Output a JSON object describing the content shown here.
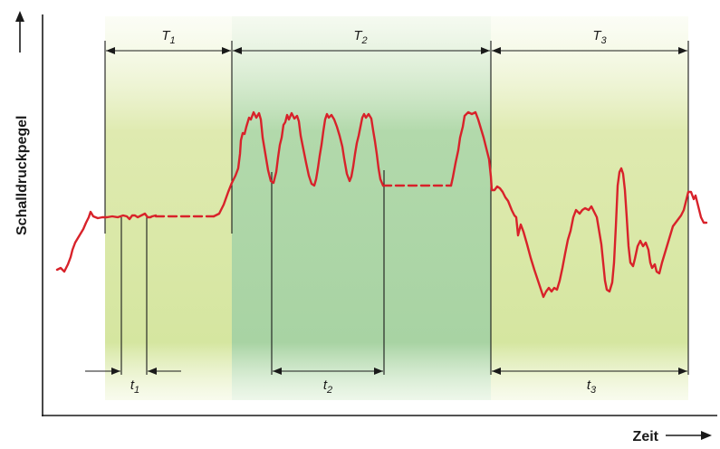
{
  "axes": {
    "y_label": "Schalldruckpegel",
    "x_label": "Zeit"
  },
  "periods": [
    {
      "name": "T",
      "sub": "1"
    },
    {
      "name": "T",
      "sub": "2"
    },
    {
      "name": "T",
      "sub": "3"
    }
  ],
  "intervals": [
    {
      "name": "t",
      "sub": "1"
    },
    {
      "name": "t",
      "sub": "2"
    },
    {
      "name": "t",
      "sub": "3"
    }
  ],
  "colors": {
    "signal": "#d8222a",
    "band_light": "#d7e6a4",
    "band_middle": "#a8d4a4",
    "axis": "#1a1a1a"
  }
}
